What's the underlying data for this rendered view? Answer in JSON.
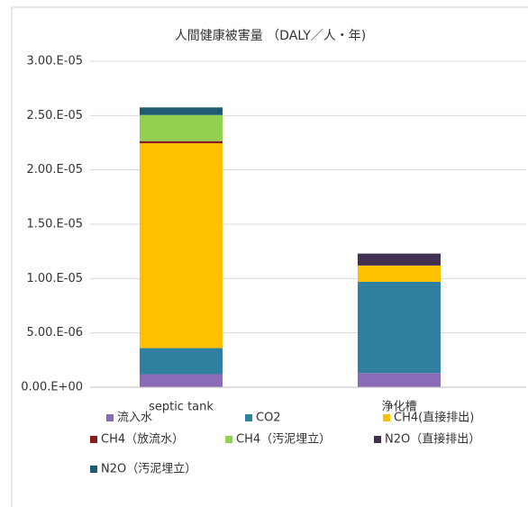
{
  "chart_data": {
    "type": "stacked_bar",
    "title": "人間健康被害量 （DALY／人・年)",
    "categories": [
      "septic tank",
      "浄化槽"
    ],
    "series": [
      {
        "name": "流入水",
        "color": "#8a6bb8",
        "values": [
          1.2e-06,
          1.3e-06
        ]
      },
      {
        "name": "CO2",
        "color": "#2f7fa0",
        "values": [
          2.4e-06,
          8.4e-06
        ]
      },
      {
        "name": "CH4(直接排出)",
        "color": "#ffc000",
        "values": [
          1.885e-05,
          1.5e-06
        ]
      },
      {
        "name": "CH4（放流水）",
        "color": "#8b1c1c",
        "values": [
          2e-07,
          0
        ]
      },
      {
        "name": "CH4（汚泥埋立）",
        "color": "#92d050",
        "values": [
          2.4e-06,
          0
        ]
      },
      {
        "name": "N2O（直接排出）",
        "color": "#403153",
        "values": [
          0,
          1.1e-06
        ]
      },
      {
        "name": "N2O（汚泥埋立）",
        "color": "#1f5c73",
        "values": [
          7e-07,
          0
        ]
      }
    ],
    "ylim": [
      0,
      3e-05
    ],
    "yticks": [
      {
        "value": 0,
        "label": "0.00.E+00"
      },
      {
        "value": 5e-06,
        "label": "5.00.E-06"
      },
      {
        "value": 1e-05,
        "label": "1.00.E-05"
      },
      {
        "value": 1.5e-05,
        "label": "1.50.E-05"
      },
      {
        "value": 2e-05,
        "label": "2.00.E-05"
      },
      {
        "value": 2.5e-05,
        "label": "2.50.E-05"
      },
      {
        "value": 3e-05,
        "label": "3.00.E-05"
      }
    ],
    "grid": true
  }
}
